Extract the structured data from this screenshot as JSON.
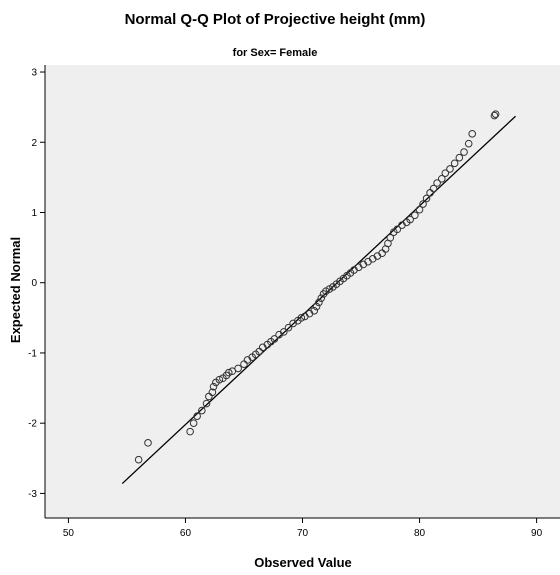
{
  "chart_data": {
    "type": "scatter",
    "title": "Normal Q-Q Plot of Projective height (mm)",
    "subtitle": "for Sex= Female",
    "xlabel": "Observed Value",
    "ylabel": "Expected Normal",
    "xlim": [
      48,
      92
    ],
    "ylim": [
      -3.35,
      3.1
    ],
    "x_ticks": [
      50,
      60,
      70,
      80,
      90
    ],
    "y_ticks": [
      -3,
      -2,
      -1,
      0,
      1,
      2,
      3
    ],
    "grid": false,
    "colors": {
      "plot_background": "#efefef",
      "marker_stroke": "#333333",
      "reference_line": "#000000"
    },
    "reference_line": {
      "x": [
        54.6,
        88.2
      ],
      "y": [
        -2.86,
        2.37
      ]
    },
    "series": [
      {
        "marker": "open-circle",
        "points": [
          [
            56.0,
            -2.52
          ],
          [
            56.8,
            -2.28
          ],
          [
            60.4,
            -2.12
          ],
          [
            60.7,
            -2.0
          ],
          [
            61.0,
            -1.9
          ],
          [
            61.4,
            -1.82
          ],
          [
            61.8,
            -1.72
          ],
          [
            62.0,
            -1.62
          ],
          [
            62.3,
            -1.56
          ],
          [
            62.4,
            -1.48
          ],
          [
            62.6,
            -1.42
          ],
          [
            62.9,
            -1.38
          ],
          [
            63.2,
            -1.36
          ],
          [
            63.5,
            -1.32
          ],
          [
            63.7,
            -1.28
          ],
          [
            64.0,
            -1.26
          ],
          [
            64.5,
            -1.22
          ],
          [
            65.0,
            -1.16
          ],
          [
            65.3,
            -1.1
          ],
          [
            65.7,
            -1.06
          ],
          [
            66.0,
            -1.02
          ],
          [
            66.3,
            -0.98
          ],
          [
            66.6,
            -0.92
          ],
          [
            67.0,
            -0.88
          ],
          [
            67.3,
            -0.84
          ],
          [
            67.6,
            -0.8
          ],
          [
            68.0,
            -0.74
          ],
          [
            68.4,
            -0.7
          ],
          [
            68.8,
            -0.64
          ],
          [
            69.2,
            -0.58
          ],
          [
            69.6,
            -0.54
          ],
          [
            69.9,
            -0.5
          ],
          [
            70.2,
            -0.48
          ],
          [
            70.6,
            -0.44
          ],
          [
            71.0,
            -0.4
          ],
          [
            71.2,
            -0.34
          ],
          [
            71.4,
            -0.28
          ],
          [
            71.6,
            -0.22
          ],
          [
            71.8,
            -0.16
          ],
          [
            72.0,
            -0.12
          ],
          [
            72.3,
            -0.09
          ],
          [
            72.6,
            -0.06
          ],
          [
            72.9,
            -0.02
          ],
          [
            73.2,
            0.02
          ],
          [
            73.5,
            0.06
          ],
          [
            73.8,
            0.1
          ],
          [
            74.1,
            0.14
          ],
          [
            74.4,
            0.18
          ],
          [
            74.8,
            0.22
          ],
          [
            75.2,
            0.26
          ],
          [
            75.6,
            0.3
          ],
          [
            76.0,
            0.34
          ],
          [
            76.4,
            0.38
          ],
          [
            76.8,
            0.42
          ],
          [
            77.1,
            0.48
          ],
          [
            77.3,
            0.56
          ],
          [
            77.5,
            0.64
          ],
          [
            77.8,
            0.72
          ],
          [
            78.1,
            0.76
          ],
          [
            78.5,
            0.82
          ],
          [
            78.9,
            0.86
          ],
          [
            79.2,
            0.9
          ],
          [
            79.6,
            0.96
          ],
          [
            80.0,
            1.04
          ],
          [
            80.3,
            1.12
          ],
          [
            80.6,
            1.2
          ],
          [
            80.9,
            1.28
          ],
          [
            81.2,
            1.34
          ],
          [
            81.5,
            1.42
          ],
          [
            81.9,
            1.48
          ],
          [
            82.2,
            1.56
          ],
          [
            82.6,
            1.62
          ],
          [
            83.0,
            1.7
          ],
          [
            83.4,
            1.78
          ],
          [
            83.8,
            1.86
          ],
          [
            84.2,
            1.98
          ],
          [
            84.5,
            2.12
          ],
          [
            86.4,
            2.38
          ],
          [
            86.5,
            2.4
          ]
        ]
      }
    ]
  }
}
